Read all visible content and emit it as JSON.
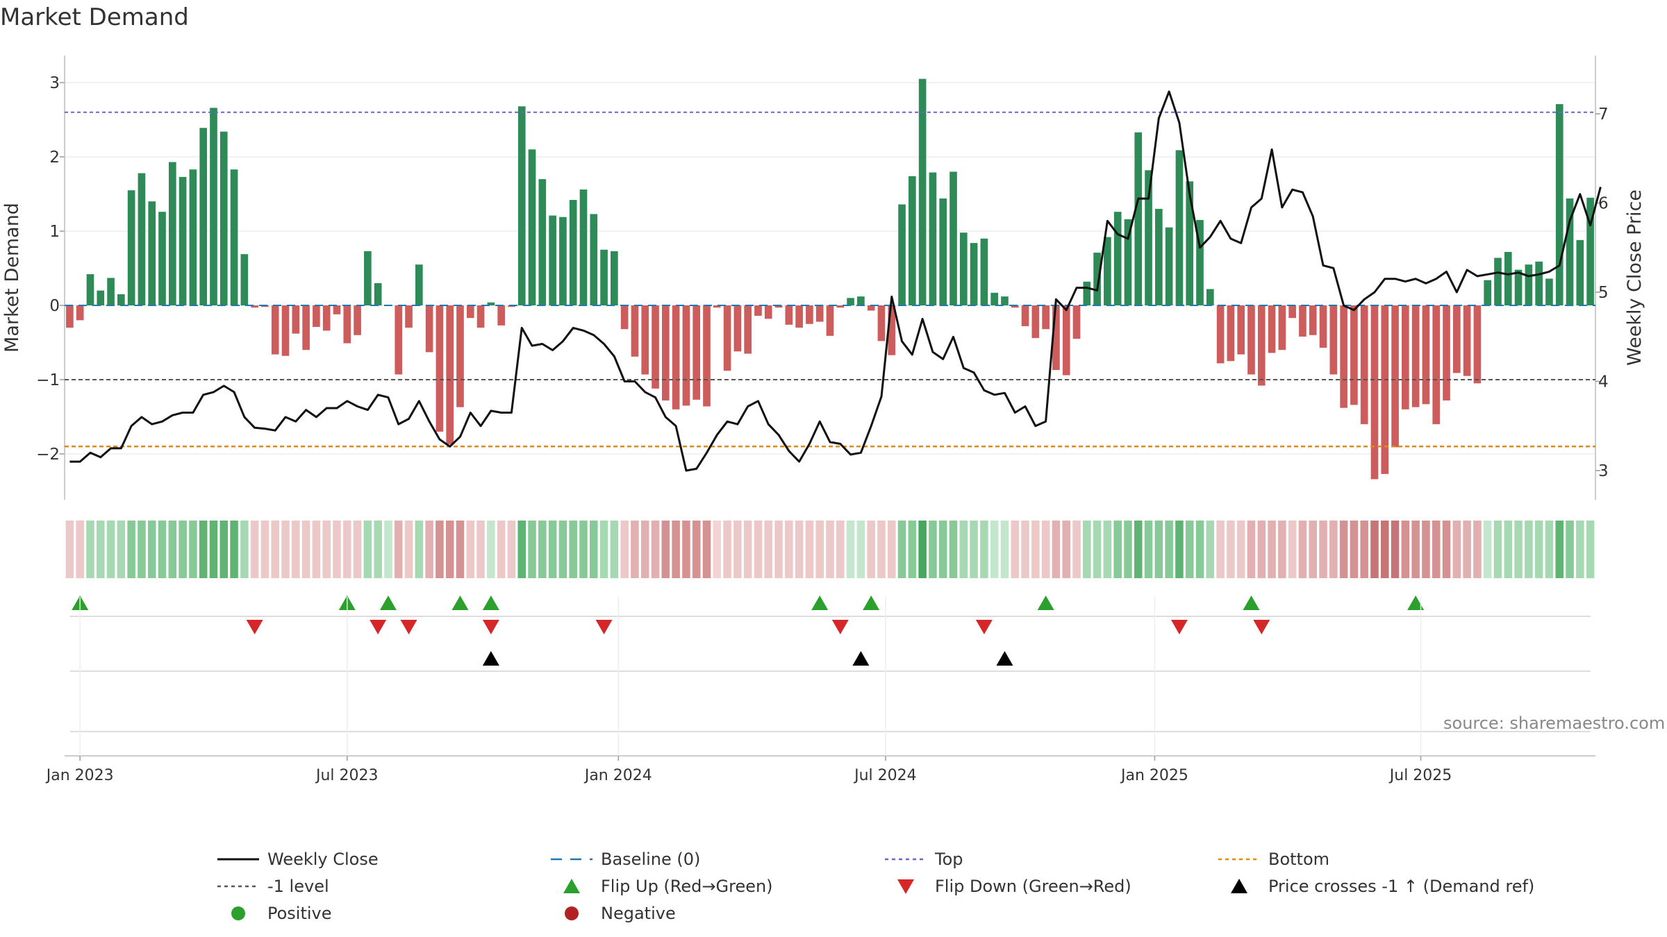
{
  "chart_data": {
    "type": "bar",
    "title": "Market Demand",
    "ylabel": "Market Demand",
    "y2label": "Weekly Close Price",
    "ylim": [
      -2.6,
      3.2
    ],
    "y2lim": [
      2.6,
      7.6
    ],
    "yticks": [
      "3",
      "2",
      "1",
      "0",
      "−1",
      "−2"
    ],
    "yticks_values": [
      3,
      2,
      1,
      0,
      -1,
      -2
    ],
    "y2ticks": [
      "7",
      "6",
      "5",
      "4",
      "3"
    ],
    "y2ticks_values": [
      7,
      6,
      5,
      4,
      3
    ],
    "x_ticks": [
      {
        "label": "Jan 2023",
        "index": 1
      },
      {
        "label": "Jul 2023",
        "index": 27
      },
      {
        "label": "Jan 2024",
        "index": 53.4
      },
      {
        "label": "Jul 2024",
        "index": 79.4
      },
      {
        "label": "Jan 2025",
        "index": 105.6
      },
      {
        "label": "Jul 2025",
        "index": 131.5
      }
    ],
    "levels": {
      "top": 2.6,
      "minus_one": -1,
      "bottom": -1.9
    },
    "demand": [
      -0.3,
      -0.2,
      0.42,
      0.2,
      0.37,
      0.15,
      1.55,
      1.78,
      1.4,
      1.26,
      1.93,
      1.73,
      1.83,
      2.39,
      2.66,
      2.34,
      1.83,
      0.69,
      -0.03,
      -0.02,
      -0.66,
      -0.68,
      -0.38,
      -0.6,
      -0.29,
      -0.34,
      -0.12,
      -0.51,
      -0.4,
      0.73,
      0.3,
      0.0,
      -0.93,
      -0.3,
      0.55,
      -0.63,
      -1.7,
      -1.87,
      -1.37,
      -0.17,
      -0.3,
      0.04,
      -0.27,
      -0.02,
      2.68,
      2.1,
      1.7,
      1.21,
      1.19,
      1.42,
      1.56,
      1.23,
      0.75,
      0.73,
      -0.32,
      -0.69,
      -0.93,
      -1.12,
      -1.28,
      -1.4,
      -1.35,
      -1.27,
      -1.36,
      -0.03,
      -0.88,
      -0.62,
      -0.65,
      -0.14,
      -0.18,
      -0.03,
      -0.26,
      -0.3,
      -0.25,
      -0.22,
      -0.41,
      -0.03,
      0.1,
      0.12,
      -0.07,
      -0.48,
      -0.67,
      1.36,
      1.74,
      3.05,
      1.79,
      1.44,
      1.8,
      0.98,
      0.84,
      0.9,
      0.17,
      0.12,
      -0.03,
      -0.28,
      -0.44,
      -0.32,
      -0.87,
      -0.94,
      -0.45,
      0.32,
      0.71,
      0.92,
      1.26,
      1.16,
      2.33,
      1.82,
      1.3,
      1.05,
      2.09,
      1.67,
      1.15,
      0.22,
      -0.78,
      -0.75,
      -0.66,
      -0.93,
      -1.08,
      -0.64,
      -0.6,
      -0.17,
      -0.42,
      -0.4,
      -0.57,
      -0.93,
      -1.38,
      -1.34,
      -1.6,
      -2.34,
      -2.27,
      -1.91,
      -1.4,
      -1.37,
      -1.33,
      -1.6,
      -1.28,
      -0.91,
      -0.95,
      -1.05,
      0.34,
      0.64,
      0.72,
      0.48,
      0.55,
      0.59,
      0.36,
      2.71,
      1.44,
      0.88,
      1.45
    ],
    "price": [
      3.1,
      3.1,
      3.2,
      3.15,
      3.25,
      3.25,
      3.5,
      3.6,
      3.52,
      3.55,
      3.62,
      3.65,
      3.65,
      3.85,
      3.88,
      3.95,
      3.88,
      3.6,
      3.48,
      3.47,
      3.45,
      3.6,
      3.55,
      3.68,
      3.6,
      3.7,
      3.7,
      3.78,
      3.72,
      3.68,
      3.85,
      3.82,
      3.52,
      3.58,
      3.78,
      3.55,
      3.35,
      3.27,
      3.38,
      3.65,
      3.5,
      3.67,
      3.65,
      3.65,
      4.6,
      4.4,
      4.42,
      4.35,
      4.45,
      4.6,
      4.57,
      4.52,
      4.42,
      4.28,
      4.0,
      4.0,
      3.88,
      3.82,
      3.6,
      3.5,
      3.0,
      3.02,
      3.2,
      3.4,
      3.55,
      3.52,
      3.72,
      3.78,
      3.52,
      3.4,
      3.22,
      3.1,
      3.3,
      3.55,
      3.32,
      3.3,
      3.18,
      3.2,
      3.5,
      3.83,
      4.95,
      4.45,
      4.3,
      4.7,
      4.33,
      4.25,
      4.5,
      4.15,
      4.1,
      3.9,
      3.85,
      3.87,
      3.65,
      3.72,
      3.5,
      3.55,
      4.92,
      4.8,
      5.05,
      5.05,
      5.02,
      5.8,
      5.65,
      5.6,
      6.05,
      6.05,
      6.95,
      7.25,
      6.9,
      6.1,
      5.5,
      5.62,
      5.8,
      5.6,
      5.55,
      5.95,
      6.05,
      6.6,
      5.95,
      6.15,
      6.12,
      5.85,
      5.3,
      5.27,
      4.85,
      4.8,
      4.92,
      5.0,
      5.15,
      5.15,
      5.12,
      5.15,
      5.1,
      5.15,
      5.23,
      5.0,
      5.25,
      5.18,
      5.2,
      5.22,
      5.2,
      5.22,
      5.18,
      5.2,
      5.23,
      5.3,
      5.8,
      6.1,
      5.75,
      6.18
    ],
    "band_intensity": [
      1,
      1,
      2,
      2,
      2,
      2,
      3,
      3,
      3,
      3,
      3,
      3,
      3,
      4,
      4,
      4,
      4,
      2,
      1,
      1,
      1,
      1,
      1,
      1,
      1,
      1,
      1,
      1,
      1,
      2,
      2,
      1,
      2,
      1,
      2,
      2,
      3,
      3,
      3,
      1,
      1,
      1,
      1,
      1,
      4,
      3,
      3,
      3,
      3,
      3,
      3,
      3,
      2,
      2,
      1,
      2,
      2,
      2,
      3,
      3,
      3,
      3,
      3,
      0,
      1,
      1,
      1,
      1,
      1,
      1,
      1,
      1,
      1,
      1,
      1,
      1,
      1,
      1,
      1,
      1,
      1,
      3,
      3,
      5,
      3,
      3,
      3,
      2,
      2,
      2,
      1,
      1,
      1,
      1,
      1,
      1,
      2,
      2,
      1,
      2,
      2,
      2,
      3,
      3,
      4,
      3,
      3,
      3,
      4,
      3,
      3,
      2,
      1,
      1,
      1,
      2,
      2,
      2,
      2,
      1,
      2,
      2,
      2,
      2,
      3,
      3,
      3,
      4,
      4,
      4,
      3,
      3,
      3,
      3,
      3,
      2,
      2,
      2,
      1,
      2,
      2,
      2,
      2,
      2,
      2,
      4,
      3,
      2,
      2
    ],
    "flip_up_idx": [
      1,
      27,
      31,
      38,
      41,
      73,
      78,
      95,
      115,
      131
    ],
    "flip_down_idx": [
      18,
      30,
      33,
      41,
      52,
      75,
      89,
      108,
      116
    ],
    "cross_idx": [
      41,
      77,
      91
    ],
    "legend": [
      {
        "label": "Weekly Close",
        "kind": "line",
        "color": "#111111"
      },
      {
        "label": "Baseline (0)",
        "kind": "dash",
        "color": "#1f77b4"
      },
      {
        "label": "Top",
        "kind": "dot",
        "color": "#6a67c4"
      },
      {
        "label": "Bottom",
        "kind": "dot",
        "color": "#e08a1e"
      },
      {
        "label": "-1 level",
        "kind": "dot",
        "color": "#555555"
      },
      {
        "label": "Flip Up (Red→Green)",
        "kind": "tri-up",
        "color": "#2ca02c"
      },
      {
        "label": "Flip Down (Green→Red)",
        "kind": "tri-down",
        "color": "#d62728"
      },
      {
        "label": "Price crosses -1 ↑ (Demand ref)",
        "kind": "tri-up",
        "color": "#000000"
      },
      {
        "label": "Positive",
        "kind": "circle",
        "color": "#2ca02c"
      },
      {
        "label": "Negative",
        "kind": "circle",
        "color": "#b22222"
      }
    ],
    "source": "source: sharemaestro.com",
    "colors": {
      "positive_bar": "#2e8b57",
      "negative_bar": "#cd5c5c",
      "price_line": "#111111",
      "baseline": "#1f77b4",
      "top": "#6a67c4",
      "minus_one": "#555555",
      "bottom": "#e08a1e",
      "flip_up": "#2ca02c",
      "flip_down": "#d62728",
      "cross": "#000000"
    }
  }
}
